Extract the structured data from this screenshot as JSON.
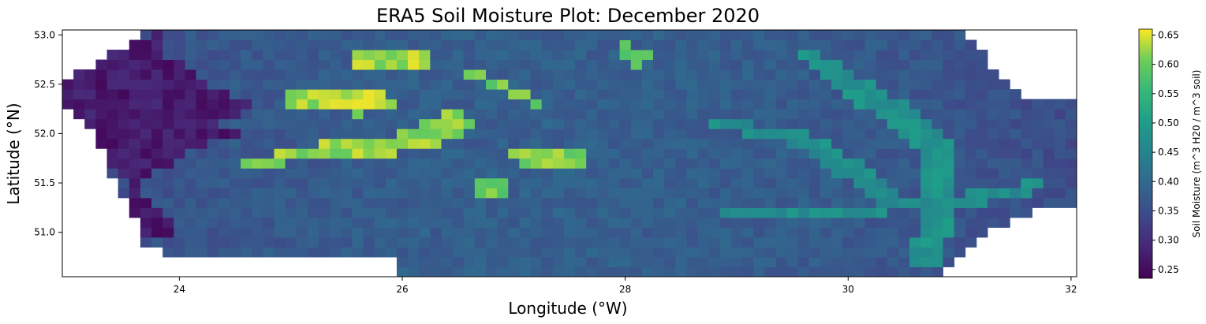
{
  "chart_data": {
    "type": "heatmap",
    "title": "ERA5 Soil Moisture Plot: December 2020",
    "xlabel": "Longitude (°W)",
    "ylabel": "Latitude (°N)",
    "xlim": [
      22.95,
      32.05
    ],
    "ylim": [
      50.55,
      53.05
    ],
    "x_ticks": [
      "24",
      "26",
      "28",
      "30",
      "32"
    ],
    "y_ticks": [
      "51.0",
      "51.5",
      "52.0",
      "52.5",
      "53.0"
    ],
    "grid_resolution_deg": 0.1,
    "colormap": "viridis",
    "colorbar": {
      "label": "Soil Moisture (m^3 H20 / m^3 soil)",
      "range": [
        0.235,
        0.66
      ],
      "ticks": [
        "0.25",
        "0.30",
        "0.35",
        "0.40",
        "0.45",
        "0.50",
        "0.55",
        "0.60",
        "0.65"
      ]
    },
    "background_value": 0.38,
    "features": [
      {
        "name": "west dry region core",
        "polygon": [
          [
            23.0,
            52.4
          ],
          [
            24.2,
            52.45
          ],
          [
            24.6,
            52.35
          ],
          [
            24.7,
            52.25
          ],
          [
            24.2,
            52.2
          ],
          [
            23.3,
            52.25
          ]
        ],
        "value": 0.24
      },
      {
        "name": "west dry region",
        "polygon": [
          [
            23.8,
            53.05
          ],
          [
            23.2,
            52.75
          ],
          [
            22.95,
            52.5
          ],
          [
            22.95,
            52.35
          ],
          [
            23.2,
            52.1
          ],
          [
            23.3,
            51.9
          ],
          [
            23.4,
            51.7
          ],
          [
            23.6,
            51.4
          ],
          [
            23.5,
            51.1
          ],
          [
            23.8,
            50.9
          ],
          [
            24.0,
            51.0
          ],
          [
            23.6,
            51.5
          ],
          [
            24.2,
            51.9
          ],
          [
            24.6,
            52.0
          ],
          [
            24.3,
            52.1
          ],
          [
            24.7,
            52.3
          ],
          [
            24.3,
            52.5
          ],
          [
            23.9,
            52.8
          ]
        ],
        "value": 0.27
      },
      {
        "name": "wet band top",
        "polygon": [
          [
            25.6,
            52.85
          ],
          [
            26.3,
            52.85
          ],
          [
            26.3,
            52.7
          ],
          [
            25.6,
            52.7
          ]
        ],
        "value": 0.63
      },
      {
        "name": "wet band left",
        "polygon": [
          [
            25.0,
            52.45
          ],
          [
            25.8,
            52.45
          ],
          [
            26.0,
            52.3
          ],
          [
            25.6,
            52.2
          ],
          [
            25.0,
            52.3
          ]
        ],
        "value": 0.63
      },
      {
        "name": "wet band main",
        "polygon": [
          [
            24.5,
            51.7
          ],
          [
            25.2,
            51.9
          ],
          [
            26.0,
            52.0
          ],
          [
            26.5,
            52.25
          ],
          [
            26.7,
            52.1
          ],
          [
            26.5,
            51.95
          ],
          [
            25.8,
            51.75
          ],
          [
            24.9,
            51.7
          ],
          [
            24.6,
            51.6
          ]
        ],
        "value": 0.62
      },
      {
        "name": "wet patch center",
        "polygon": [
          [
            26.9,
            51.9
          ],
          [
            27.7,
            51.85
          ],
          [
            27.6,
            51.65
          ],
          [
            27.1,
            51.7
          ]
        ],
        "value": 0.61
      },
      {
        "name": "wet patch small",
        "polygon": [
          [
            26.7,
            51.55
          ],
          [
            27.0,
            51.55
          ],
          [
            27.0,
            51.35
          ],
          [
            26.7,
            51.35
          ]
        ],
        "value": 0.6
      },
      {
        "name": "wet diagonal",
        "polygon": [
          [
            26.5,
            52.7
          ],
          [
            27.3,
            52.35
          ],
          [
            27.3,
            52.25
          ],
          [
            26.6,
            52.55
          ]
        ],
        "value": 0.6
      },
      {
        "name": "wet top right",
        "polygon": [
          [
            27.95,
            52.95
          ],
          [
            28.3,
            52.75
          ],
          [
            28.1,
            52.7
          ],
          [
            27.9,
            52.85
          ]
        ],
        "value": 0.6
      },
      {
        "name": "river east",
        "polygon": [
          [
            29.7,
            52.85
          ],
          [
            30.4,
            52.4
          ],
          [
            30.9,
            52.0
          ],
          [
            31.0,
            51.3
          ],
          [
            30.8,
            50.6
          ],
          [
            30.5,
            50.6
          ],
          [
            30.7,
            51.3
          ],
          [
            30.6,
            51.9
          ],
          [
            30.1,
            52.3
          ],
          [
            29.6,
            52.8
          ]
        ],
        "value": 0.48
      },
      {
        "name": "river mid",
        "polygon": [
          [
            28.8,
            52.15
          ],
          [
            29.6,
            52.05
          ],
          [
            30.3,
            51.6
          ],
          [
            30.6,
            51.3
          ],
          [
            30.3,
            51.3
          ],
          [
            29.9,
            51.6
          ],
          [
            29.5,
            51.9
          ],
          [
            28.8,
            52.05
          ]
        ],
        "value": 0.47
      },
      {
        "name": "river south",
        "polygon": [
          [
            28.9,
            51.3
          ],
          [
            30.5,
            51.3
          ],
          [
            31.1,
            51.4
          ],
          [
            31.8,
            51.55
          ],
          [
            31.8,
            51.45
          ],
          [
            31.1,
            51.25
          ],
          [
            30.4,
            51.2
          ],
          [
            28.9,
            51.2
          ]
        ],
        "value": 0.47
      }
    ],
    "mask": [
      {
        "name": "west margin",
        "polygon": [
          [
            22.95,
            53.05
          ],
          [
            23.75,
            53.05
          ],
          [
            23.2,
            52.7
          ],
          [
            22.95,
            52.5
          ]
        ]
      },
      {
        "name": "southwest margin",
        "polygon": [
          [
            22.95,
            52.3
          ],
          [
            23.2,
            52.1
          ],
          [
            23.35,
            51.7
          ],
          [
            23.55,
            51.3
          ],
          [
            23.7,
            50.9
          ],
          [
            24.0,
            50.75
          ],
          [
            26.0,
            50.75
          ],
          [
            26.0,
            50.55
          ],
          [
            22.95,
            50.55
          ]
        ]
      },
      {
        "name": "northeast margin",
        "polygon": [
          [
            32.05,
            53.05
          ],
          [
            31.0,
            53.05
          ],
          [
            31.3,
            52.7
          ],
          [
            31.6,
            52.4
          ],
          [
            32.05,
            52.35
          ]
        ]
      },
      {
        "name": "southeast margin",
        "polygon": [
          [
            32.05,
            51.3
          ],
          [
            31.8,
            51.3
          ],
          [
            31.3,
            51.0
          ],
          [
            31.0,
            50.7
          ],
          [
            30.8,
            50.55
          ],
          [
            32.05,
            50.55
          ]
        ]
      }
    ]
  }
}
